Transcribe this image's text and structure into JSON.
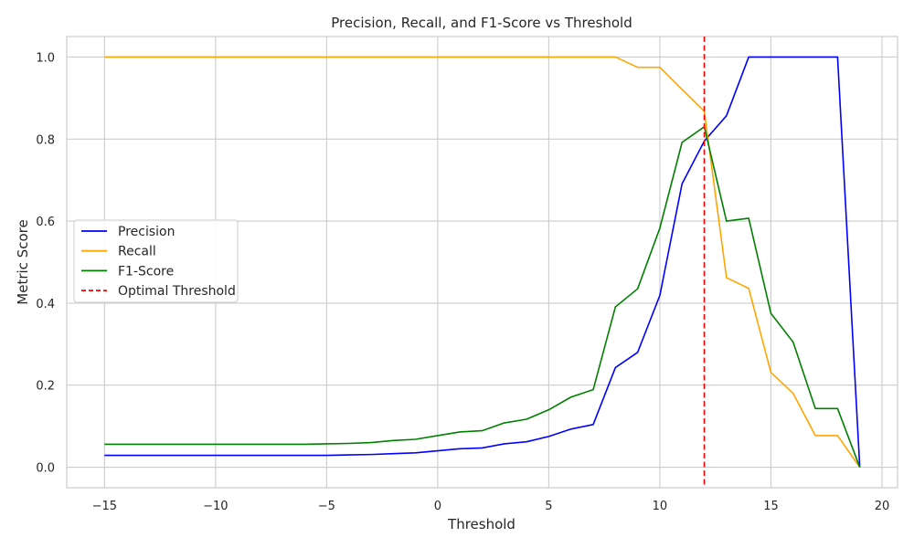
{
  "chart_data": {
    "type": "line",
    "title": "Precision, Recall, and F1-Score vs Threshold",
    "xlabel": "Threshold",
    "ylabel": "Metric Score",
    "xlim": [
      -16.7,
      20.7
    ],
    "ylim": [
      -0.05,
      1.05
    ],
    "xticks": [
      -15,
      -10,
      -5,
      0,
      5,
      10,
      15,
      20
    ],
    "yticks": [
      0.0,
      0.2,
      0.4,
      0.6,
      0.8,
      1.0
    ],
    "xtick_labels": [
      "−15",
      "−10",
      "−5",
      "0",
      "5",
      "10",
      "15",
      "20"
    ],
    "ytick_labels": [
      "0.0",
      "0.2",
      "0.4",
      "0.6",
      "0.8",
      "1.0"
    ],
    "grid": true,
    "legend_position": "center-left",
    "x": [
      -15,
      -14,
      -13,
      -12,
      -11,
      -10,
      -9,
      -8,
      -7,
      -6,
      -5,
      -4,
      -3,
      -2,
      -1,
      0,
      1,
      2,
      3,
      4,
      5,
      6,
      7,
      8,
      9,
      10,
      11,
      12,
      13,
      14,
      15,
      16,
      17,
      18,
      19
    ],
    "series": [
      {
        "name": "Precision",
        "color": "#0000ff",
        "style": "solid",
        "values": [
          0.029,
          0.029,
          0.029,
          0.029,
          0.029,
          0.029,
          0.029,
          0.029,
          0.029,
          0.029,
          0.029,
          0.03,
          0.031,
          0.033,
          0.035,
          0.04,
          0.045,
          0.047,
          0.057,
          0.062,
          0.075,
          0.093,
          0.104,
          0.243,
          0.28,
          0.419,
          0.691,
          0.795,
          0.857,
          1.0,
          1.0,
          1.0,
          1.0,
          1.0,
          0.0
        ]
      },
      {
        "name": "Recall",
        "color": "#ffa500",
        "style": "solid",
        "values": [
          1.0,
          1.0,
          1.0,
          1.0,
          1.0,
          1.0,
          1.0,
          1.0,
          1.0,
          1.0,
          1.0,
          1.0,
          1.0,
          1.0,
          1.0,
          1.0,
          1.0,
          1.0,
          1.0,
          1.0,
          1.0,
          1.0,
          1.0,
          1.0,
          0.975,
          0.975,
          0.921,
          0.868,
          0.462,
          0.436,
          0.231,
          0.18,
          0.077,
          0.077,
          0.0
        ]
      },
      {
        "name": "F1-Score",
        "color": "#008000",
        "style": "solid",
        "values": [
          0.056,
          0.056,
          0.056,
          0.056,
          0.056,
          0.056,
          0.056,
          0.056,
          0.056,
          0.056,
          0.057,
          0.058,
          0.06,
          0.065,
          0.068,
          0.077,
          0.086,
          0.089,
          0.108,
          0.117,
          0.14,
          0.171,
          0.189,
          0.391,
          0.435,
          0.583,
          0.792,
          0.83,
          0.6,
          0.607,
          0.375,
          0.305,
          0.143,
          0.143,
          0.0
        ]
      }
    ],
    "vlines": [
      {
        "name": "Optimal Threshold",
        "x": 12,
        "color": "#ff0000",
        "style": "dashed"
      }
    ]
  }
}
